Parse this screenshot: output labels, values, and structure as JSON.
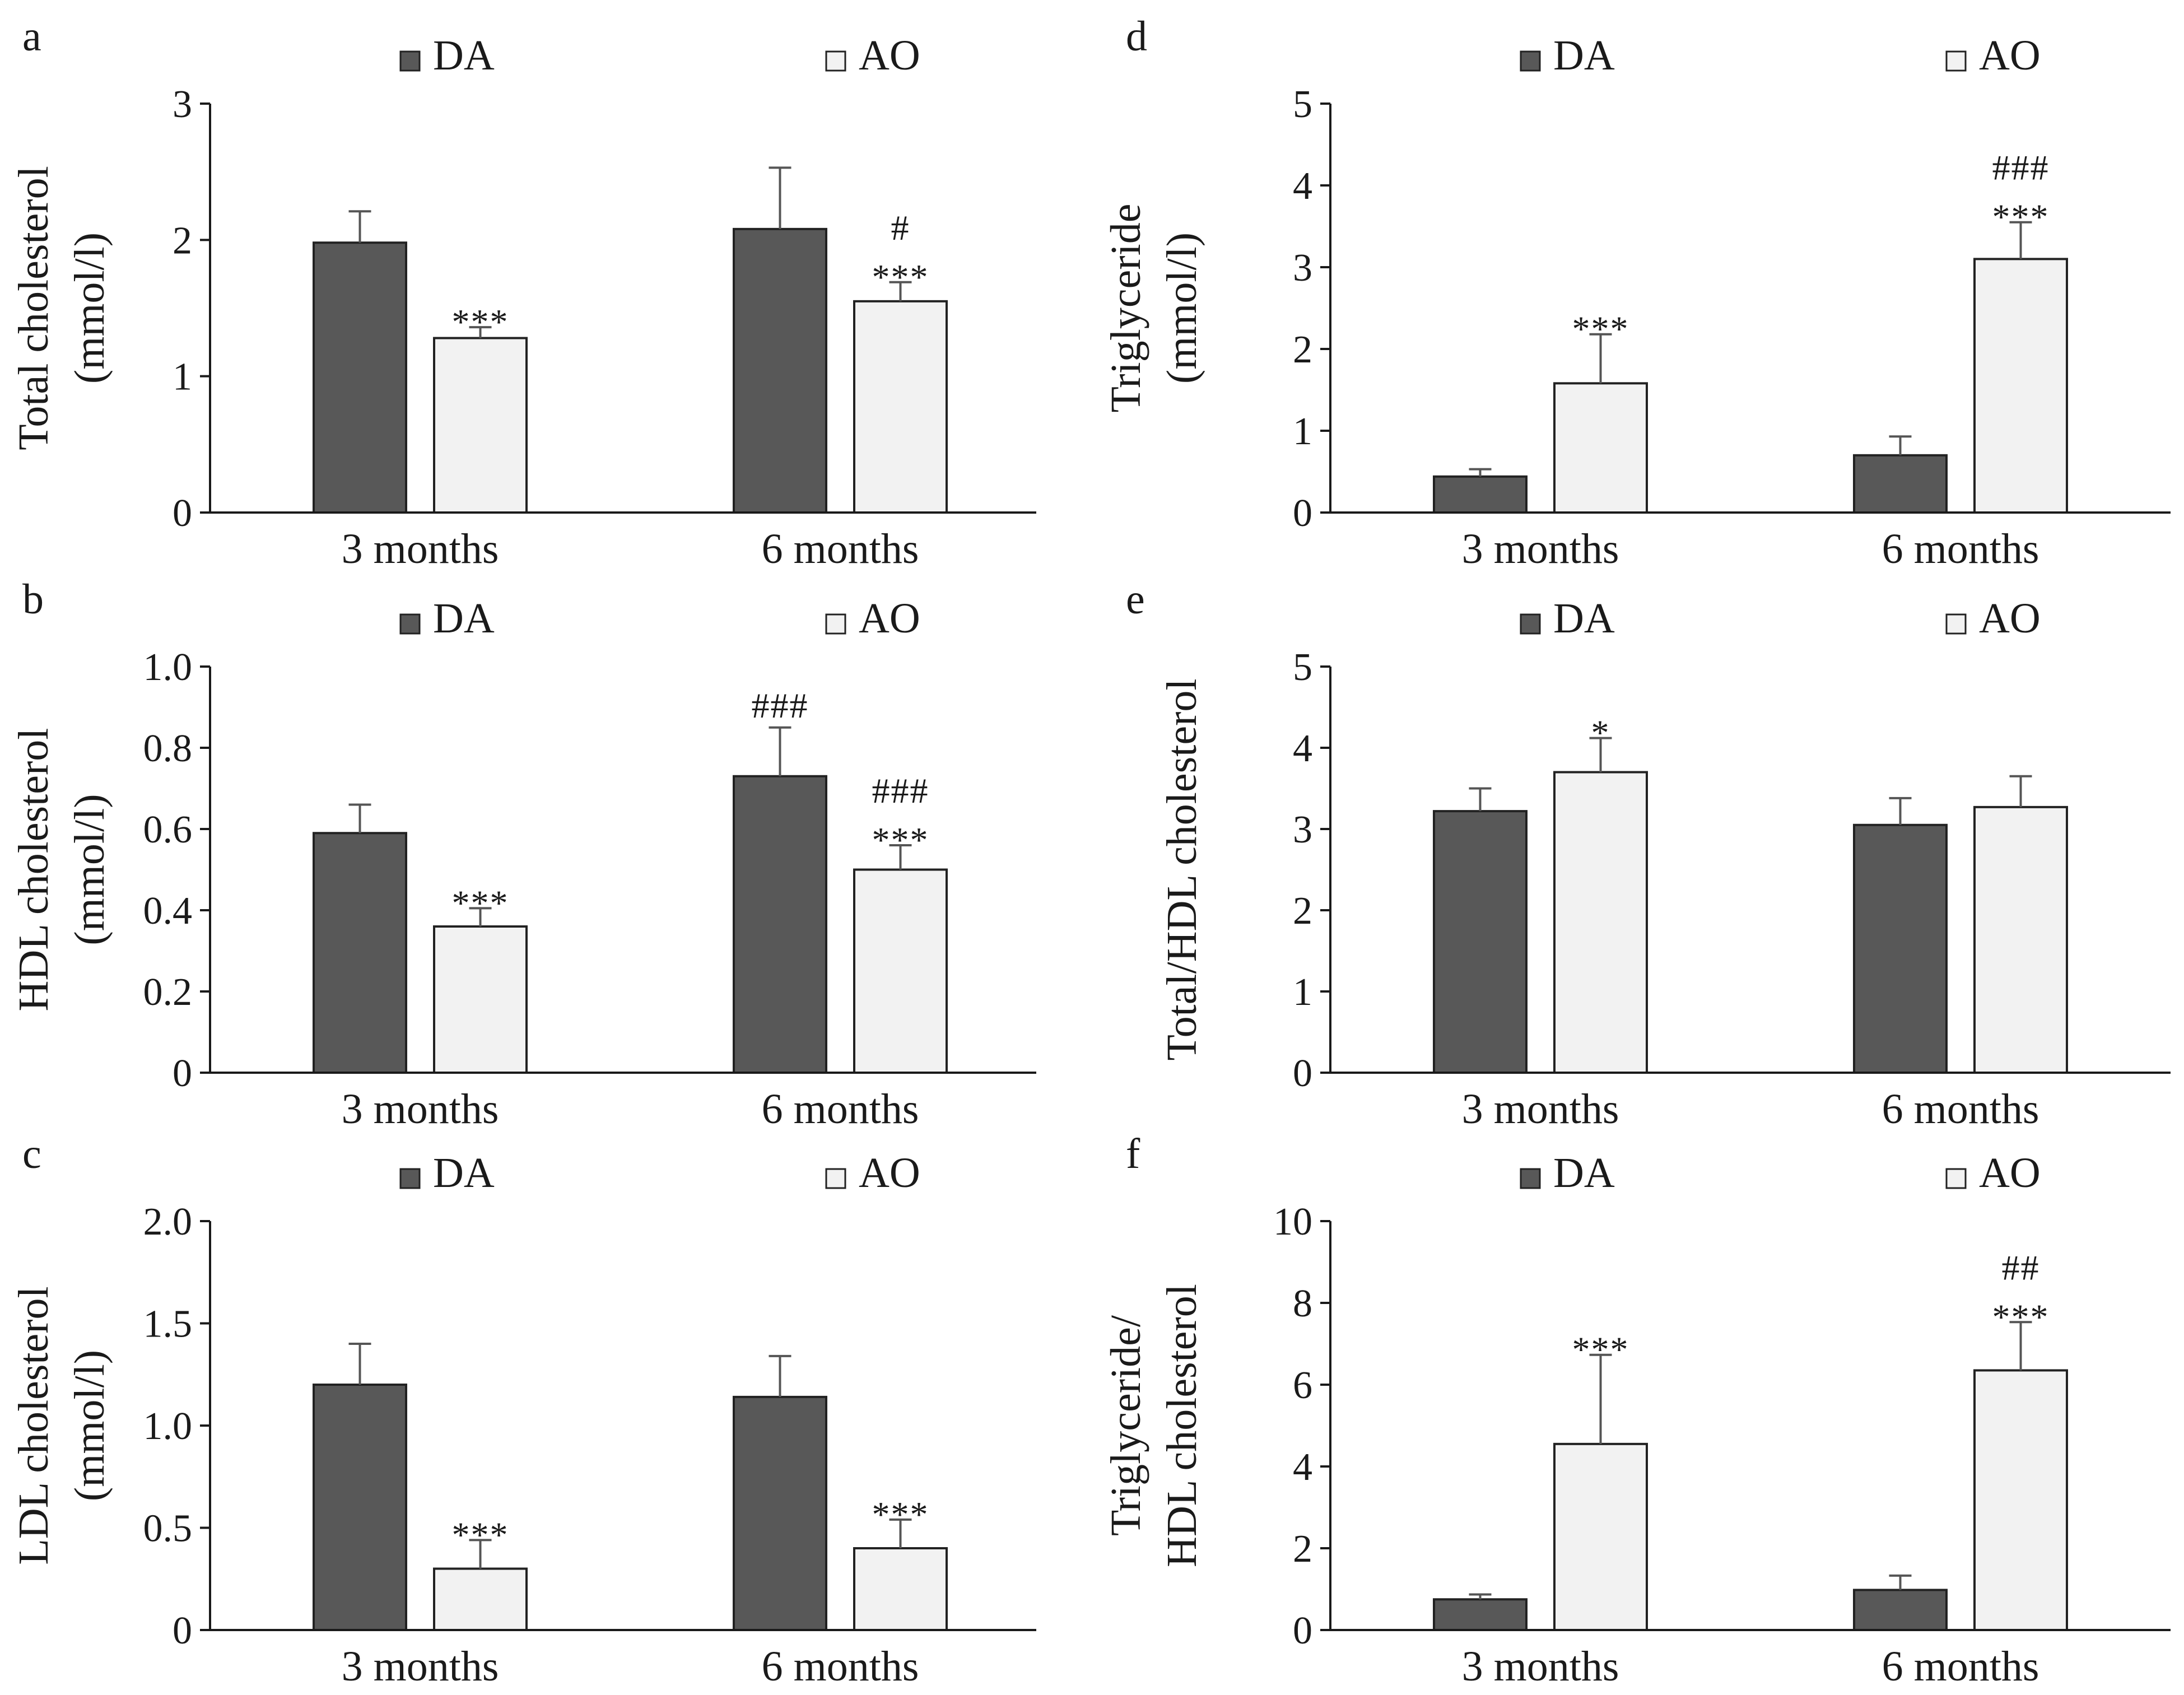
{
  "chart_data": [
    {
      "panel": "a",
      "type": "bar",
      "categories": [
        "3 months",
        "6 months"
      ],
      "series": [
        {
          "name": "DA",
          "color": "#585858",
          "values": [
            1.98,
            2.08
          ],
          "errors": [
            0.23,
            0.45
          ]
        },
        {
          "name": "AO",
          "color": "#f2f2f2",
          "values": [
            1.28,
            1.55
          ],
          "errors": [
            0.08,
            0.14
          ]
        }
      ],
      "annotations": [
        {
          "category": 0,
          "series": 1,
          "lines": [
            "***"
          ]
        },
        {
          "category": 1,
          "series": 1,
          "lines": [
            "#",
            "***"
          ]
        }
      ],
      "ylabel_lines": [
        "Total cholesterol",
        "(mmol/l)"
      ],
      "ylim": [
        0,
        3
      ],
      "yticks": [
        0,
        1,
        2,
        3
      ],
      "ytick_labels": [
        "0",
        "1",
        "2",
        "3"
      ]
    },
    {
      "panel": "b",
      "type": "bar",
      "categories": [
        "3 months",
        "6 months"
      ],
      "series": [
        {
          "name": "DA",
          "color": "#585858",
          "values": [
            0.59,
            0.73
          ],
          "errors": [
            0.07,
            0.12
          ]
        },
        {
          "name": "AO",
          "color": "#f2f2f2",
          "values": [
            0.36,
            0.5
          ],
          "errors": [
            0.045,
            0.06
          ]
        }
      ],
      "annotations": [
        {
          "category": 0,
          "series": 1,
          "lines": [
            "***"
          ]
        },
        {
          "category": 1,
          "series": 0,
          "lines": [
            "###"
          ]
        },
        {
          "category": 1,
          "series": 1,
          "lines": [
            "###",
            "***"
          ]
        }
      ],
      "ylabel_lines": [
        "HDL cholesterol",
        "(mmol/l)"
      ],
      "ylim": [
        0,
        1
      ],
      "yticks": [
        0,
        0.2,
        0.4,
        0.6,
        0.8,
        1.0
      ],
      "ytick_labels": [
        "0",
        "0.2",
        "0.4",
        "0.6",
        "0.8",
        "1.0"
      ]
    },
    {
      "panel": "c",
      "type": "bar",
      "categories": [
        "3 months",
        "6 months"
      ],
      "series": [
        {
          "name": "DA",
          "color": "#585858",
          "values": [
            1.2,
            1.14
          ],
          "errors": [
            0.2,
            0.2
          ]
        },
        {
          "name": "AO",
          "color": "#f2f2f2",
          "values": [
            0.3,
            0.4
          ],
          "errors": [
            0.14,
            0.14
          ]
        }
      ],
      "annotations": [
        {
          "category": 0,
          "series": 1,
          "lines": [
            "***"
          ]
        },
        {
          "category": 1,
          "series": 1,
          "lines": [
            "***"
          ]
        }
      ],
      "ylabel_lines": [
        "LDL cholesterol",
        "(mmol/l)"
      ],
      "ylim": [
        0,
        2
      ],
      "yticks": [
        0,
        0.5,
        1.0,
        1.5,
        2.0
      ],
      "ytick_labels": [
        "0",
        "0.5",
        "1.0",
        "1.5",
        "2.0"
      ]
    },
    {
      "panel": "d",
      "type": "bar",
      "categories": [
        "3 months",
        "6 months"
      ],
      "series": [
        {
          "name": "DA",
          "color": "#585858",
          "values": [
            0.44,
            0.7
          ],
          "errors": [
            0.09,
            0.23
          ]
        },
        {
          "name": "AO",
          "color": "#f2f2f2",
          "values": [
            1.58,
            3.1
          ],
          "errors": [
            0.6,
            0.45
          ]
        }
      ],
      "annotations": [
        {
          "category": 0,
          "series": 1,
          "lines": [
            "***"
          ]
        },
        {
          "category": 1,
          "series": 1,
          "lines": [
            "###",
            "***"
          ]
        }
      ],
      "ylabel_lines": [
        "Triglyceride",
        "(mmol/l)"
      ],
      "ylim": [
        0,
        5
      ],
      "yticks": [
        0,
        1,
        2,
        3,
        4,
        5
      ],
      "ytick_labels": [
        "0",
        "1",
        "2",
        "3",
        "4",
        "5"
      ]
    },
    {
      "panel": "e",
      "type": "bar",
      "categories": [
        "3 months",
        "6 months"
      ],
      "series": [
        {
          "name": "DA",
          "color": "#585858",
          "values": [
            3.22,
            3.05
          ],
          "errors": [
            0.28,
            0.33
          ]
        },
        {
          "name": "AO",
          "color": "#f2f2f2",
          "values": [
            3.7,
            3.27
          ],
          "errors": [
            0.42,
            0.38
          ]
        }
      ],
      "annotations": [
        {
          "category": 0,
          "series": 1,
          "lines": [
            "*"
          ]
        }
      ],
      "ylabel_lines": [
        "Total/HDL cholesterol"
      ],
      "ylim": [
        0,
        5
      ],
      "yticks": [
        0,
        1,
        2,
        3,
        4,
        5
      ],
      "ytick_labels": [
        "0",
        "1",
        "2",
        "3",
        "4",
        "5"
      ]
    },
    {
      "panel": "f",
      "type": "bar",
      "categories": [
        "3 months",
        "6 months"
      ],
      "series": [
        {
          "name": "DA",
          "color": "#585858",
          "values": [
            0.75,
            0.98
          ],
          "errors": [
            0.12,
            0.35
          ]
        },
        {
          "name": "AO",
          "color": "#f2f2f2",
          "values": [
            4.55,
            6.35
          ],
          "errors": [
            2.18,
            1.18
          ]
        }
      ],
      "annotations": [
        {
          "category": 0,
          "series": 1,
          "lines": [
            "***"
          ]
        },
        {
          "category": 1,
          "series": 1,
          "lines": [
            "##",
            "***"
          ]
        }
      ],
      "ylabel_lines": [
        "Triglyceride/",
        "HDL cholesterol"
      ],
      "ylim": [
        0,
        10
      ],
      "yticks": [
        0,
        2,
        4,
        6,
        8,
        10
      ],
      "ytick_labels": [
        "0",
        "2",
        "4",
        "6",
        "8",
        "10"
      ]
    }
  ]
}
